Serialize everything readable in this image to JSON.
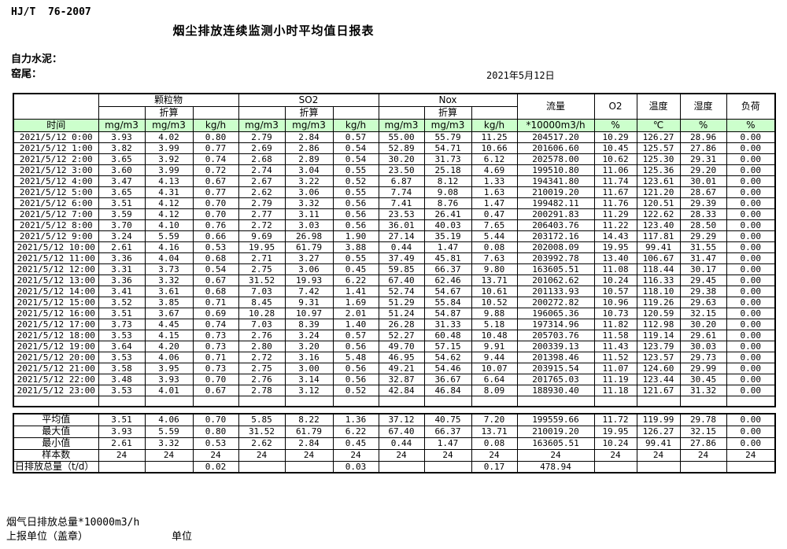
{
  "page": {
    "standard": "HJ/T  76-2007",
    "title": "烟尘排放连续监测小时平均值日报表",
    "company": "自力水泥：",
    "station": "窑尾：",
    "date": "2021年5月12日"
  },
  "colors": {
    "header_green": "#ccffcc"
  },
  "table": {
    "time_header": "时间",
    "groups": [
      "颗粒物",
      "SO2",
      "Nox"
    ],
    "converted_label": "折算",
    "scalar_headers": [
      "流量",
      "O2",
      "温度",
      "湿度",
      "负荷"
    ],
    "units": [
      "mg/m3",
      "mg/m3",
      "kg/h",
      "mg/m3",
      "mg/m3",
      "kg/h",
      "mg/m3",
      "mg/m3",
      "kg/h",
      "*10000m3/h",
      "%",
      "℃",
      "%",
      "%"
    ],
    "rows": [
      {
        "time": "2021/5/12 0:00",
        "values": [
          "3.93",
          "4.02",
          "0.80",
          "2.79",
          "2.84",
          "0.57",
          "55.00",
          "55.79",
          "11.25",
          "204517.20",
          "10.29",
          "126.27",
          "28.96",
          "0.00"
        ]
      },
      {
        "time": "2021/5/12 1:00",
        "values": [
          "3.82",
          "3.99",
          "0.77",
          "2.69",
          "2.86",
          "0.54",
          "52.89",
          "54.71",
          "10.66",
          "201606.60",
          "10.45",
          "125.57",
          "27.86",
          "0.00"
        ]
      },
      {
        "time": "2021/5/12 2:00",
        "values": [
          "3.65",
          "3.92",
          "0.74",
          "2.68",
          "2.89",
          "0.54",
          "30.20",
          "31.73",
          "6.12",
          "202578.00",
          "10.62",
          "125.30",
          "29.31",
          "0.00"
        ]
      },
      {
        "time": "2021/5/12 3:00",
        "values": [
          "3.60",
          "3.99",
          "0.72",
          "2.74",
          "3.04",
          "0.55",
          "23.50",
          "25.18",
          "4.69",
          "199510.80",
          "11.06",
          "125.36",
          "29.20",
          "0.00"
        ]
      },
      {
        "time": "2021/5/12 4:00",
        "values": [
          "3.47",
          "4.13",
          "0.67",
          "2.67",
          "3.22",
          "0.52",
          "6.87",
          "8.12",
          "1.33",
          "194341.80",
          "11.74",
          "123.61",
          "30.01",
          "0.00"
        ]
      },
      {
        "time": "2021/5/12 5:00",
        "values": [
          "3.65",
          "4.31",
          "0.77",
          "2.62",
          "3.06",
          "0.55",
          "7.74",
          "9.08",
          "1.63",
          "210019.20",
          "11.67",
          "121.20",
          "28.67",
          "0.00"
        ]
      },
      {
        "time": "2021/5/12 6:00",
        "values": [
          "3.51",
          "4.12",
          "0.70",
          "2.79",
          "3.32",
          "0.56",
          "7.41",
          "8.76",
          "1.47",
          "199482.11",
          "11.76",
          "120.51",
          "29.39",
          "0.00"
        ]
      },
      {
        "time": "2021/5/12 7:00",
        "values": [
          "3.59",
          "4.12",
          "0.70",
          "2.77",
          "3.11",
          "0.56",
          "23.53",
          "26.41",
          "0.47",
          "200291.83",
          "11.29",
          "122.62",
          "28.33",
          "0.00"
        ]
      },
      {
        "time": "2021/5/12 8:00",
        "values": [
          "3.70",
          "4.10",
          "0.76",
          "2.72",
          "3.03",
          "0.56",
          "36.01",
          "40.03",
          "7.65",
          "206403.76",
          "11.22",
          "123.40",
          "28.50",
          "0.00"
        ]
      },
      {
        "time": "2021/5/12 9:00",
        "values": [
          "3.24",
          "5.59",
          "0.66",
          "9.69",
          "26.98",
          "1.90",
          "27.14",
          "35.19",
          "5.44",
          "203172.16",
          "14.43",
          "117.81",
          "29.29",
          "0.00"
        ]
      },
      {
        "time": "2021/5/12 10:00",
        "values": [
          "2.61",
          "4.16",
          "0.53",
          "19.95",
          "61.79",
          "3.88",
          "0.44",
          "1.47",
          "0.08",
          "202008.09",
          "19.95",
          "99.41",
          "31.55",
          "0.00"
        ]
      },
      {
        "time": "2021/5/12 11:00",
        "values": [
          "3.36",
          "4.04",
          "0.68",
          "2.71",
          "3.27",
          "0.55",
          "37.49",
          "45.81",
          "7.63",
          "203992.78",
          "13.40",
          "106.67",
          "31.47",
          "0.00"
        ]
      },
      {
        "time": "2021/5/12 12:00",
        "values": [
          "3.31",
          "3.73",
          "0.54",
          "2.75",
          "3.06",
          "0.45",
          "59.85",
          "66.37",
          "9.80",
          "163605.51",
          "11.08",
          "118.44",
          "30.17",
          "0.00"
        ]
      },
      {
        "time": "2021/5/12 13:00",
        "values": [
          "3.36",
          "3.32",
          "0.67",
          "31.52",
          "19.93",
          "6.22",
          "67.40",
          "62.46",
          "13.71",
          "201062.62",
          "10.24",
          "116.33",
          "29.45",
          "0.00"
        ]
      },
      {
        "time": "2021/5/12 14:00",
        "values": [
          "3.41",
          "3.61",
          "0.68",
          "7.03",
          "7.42",
          "1.41",
          "52.74",
          "54.67",
          "10.61",
          "201133.93",
          "10.57",
          "118.10",
          "29.38",
          "0.00"
        ]
      },
      {
        "time": "2021/5/12 15:00",
        "values": [
          "3.52",
          "3.85",
          "0.71",
          "8.45",
          "9.31",
          "1.69",
          "51.29",
          "55.84",
          "10.52",
          "200272.82",
          "10.96",
          "119.26",
          "29.63",
          "0.00"
        ]
      },
      {
        "time": "2021/5/12 16:00",
        "values": [
          "3.51",
          "3.67",
          "0.69",
          "10.28",
          "10.97",
          "2.01",
          "51.24",
          "54.87",
          "9.88",
          "196065.36",
          "10.73",
          "120.59",
          "32.15",
          "0.00"
        ]
      },
      {
        "time": "2021/5/12 17:00",
        "values": [
          "3.73",
          "4.45",
          "0.74",
          "7.03",
          "8.39",
          "1.40",
          "26.28",
          "31.33",
          "5.18",
          "197314.96",
          "11.82",
          "112.98",
          "30.20",
          "0.00"
        ]
      },
      {
        "time": "2021/5/12 18:00",
        "values": [
          "3.53",
          "4.15",
          "0.73",
          "2.76",
          "3.24",
          "0.57",
          "52.27",
          "60.48",
          "10.48",
          "205703.76",
          "11.58",
          "119.14",
          "29.61",
          "0.00"
        ]
      },
      {
        "time": "2021/5/12 19:00",
        "values": [
          "3.64",
          "4.20",
          "0.73",
          "2.80",
          "3.20",
          "0.56",
          "49.70",
          "57.15",
          "9.91",
          "200339.13",
          "11.43",
          "123.79",
          "30.03",
          "0.00"
        ]
      },
      {
        "time": "2021/5/12 20:00",
        "values": [
          "3.53",
          "4.06",
          "0.71",
          "2.72",
          "3.16",
          "5.48",
          "46.95",
          "54.62",
          "9.44",
          "201398.46",
          "11.52",
          "123.57",
          "29.73",
          "0.00"
        ]
      },
      {
        "time": "2021/5/12 21:00",
        "values": [
          "3.58",
          "3.95",
          "0.73",
          "2.75",
          "3.00",
          "0.56",
          "49.21",
          "54.46",
          "10.07",
          "203915.54",
          "11.07",
          "124.60",
          "29.99",
          "0.00"
        ]
      },
      {
        "time": "2021/5/12 22:00",
        "values": [
          "3.48",
          "3.93",
          "0.70",
          "2.76",
          "3.14",
          "0.56",
          "32.87",
          "36.67",
          "6.64",
          "201765.03",
          "11.19",
          "123.44",
          "30.45",
          "0.00"
        ]
      },
      {
        "time": "2021/5/12 23:00",
        "values": [
          "3.53",
          "4.01",
          "0.67",
          "2.78",
          "3.12",
          "0.52",
          "42.84",
          "46.84",
          "8.09",
          "188930.40",
          "11.18",
          "121.67",
          "31.32",
          "0.00"
        ]
      }
    ],
    "blank_row": {
      "time": "",
      "values": [
        "",
        "",
        "",
        "",
        "",
        "",
        "",
        "",
        "",
        "",
        "",
        "",
        "",
        ""
      ]
    },
    "summary": [
      {
        "label": "平均值",
        "values": [
          "3.51",
          "4.06",
          "0.70",
          "5.85",
          "8.22",
          "1.36",
          "37.12",
          "40.75",
          "7.20",
          "199559.66",
          "11.72",
          "119.99",
          "29.78",
          "0.00"
        ]
      },
      {
        "label": "最大值",
        "values": [
          "3.93",
          "5.59",
          "0.80",
          "31.52",
          "61.79",
          "6.22",
          "67.40",
          "66.37",
          "13.71",
          "210019.20",
          "19.95",
          "126.27",
          "32.15",
          "0.00"
        ]
      },
      {
        "label": "最小值",
        "values": [
          "2.61",
          "3.32",
          "0.53",
          "2.62",
          "2.84",
          "0.45",
          "0.44",
          "1.47",
          "0.08",
          "163605.51",
          "10.24",
          "99.41",
          "27.86",
          "0.00"
        ]
      },
      {
        "label": "样本数",
        "values": [
          "24",
          "24",
          "24",
          "24",
          "24",
          "24",
          "24",
          "24",
          "24",
          "24",
          "24",
          "24",
          "24",
          "24"
        ]
      },
      {
        "label": "日排放总量（t/d）",
        "align": "left",
        "values": [
          "",
          "",
          "0.02",
          "",
          "",
          "0.03",
          "",
          "",
          "0.17",
          "478.94",
          "",
          "",
          "",
          ""
        ]
      }
    ]
  },
  "footer": {
    "line1": "烟气日排放总量*10000m3/h",
    "line2a": "上报单位（盖章）",
    "line2b": "单位"
  }
}
